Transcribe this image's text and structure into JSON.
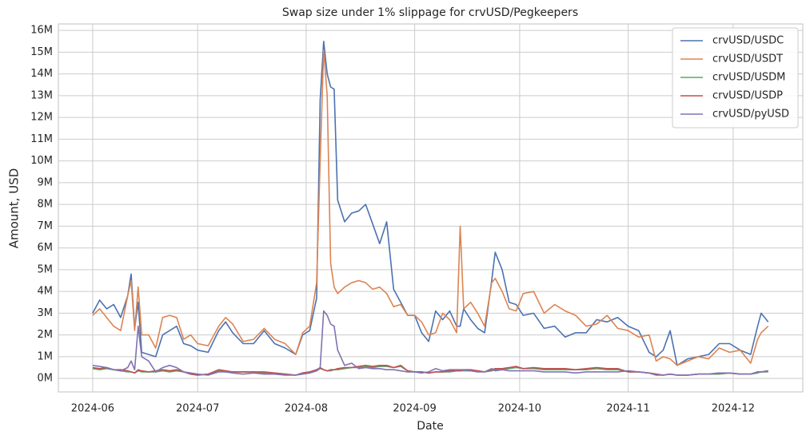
{
  "chart_data": {
    "type": "line",
    "title": "Swap size under 1% slippage for crvUSD/Pegkeepers",
    "xlabel": "Date",
    "ylabel": "Amount, USD",
    "x": [
      0,
      2,
      4,
      6,
      8,
      10,
      11,
      12,
      13,
      14,
      16,
      18,
      20,
      22,
      24,
      26,
      28,
      30,
      33,
      36,
      38,
      40,
      43,
      46,
      49,
      52,
      55,
      58,
      60,
      62,
      64,
      65,
      66,
      67,
      68,
      69,
      70,
      72,
      74,
      76,
      78,
      80,
      82,
      84,
      86,
      88,
      90,
      92,
      94,
      96,
      98,
      100,
      102,
      104,
      105,
      106,
      108,
      110,
      112,
      114,
      115,
      117,
      119,
      121,
      123,
      126,
      129,
      132,
      135,
      138,
      141,
      144,
      147,
      150,
      153,
      156,
      159,
      161,
      163,
      165,
      167,
      170,
      173,
      176,
      179,
      182,
      185,
      188,
      190,
      191,
      193
    ],
    "series": [
      {
        "name": "crvUSD/USDC",
        "color": "#4c72b0",
        "values": [
          3.0,
          3.6,
          3.2,
          3.4,
          2.8,
          3.8,
          4.8,
          2.3,
          3.5,
          1.2,
          1.1,
          1.0,
          2.0,
          2.2,
          2.4,
          1.6,
          1.5,
          1.3,
          1.2,
          2.2,
          2.6,
          2.1,
          1.6,
          1.6,
          2.2,
          1.6,
          1.4,
          1.1,
          2.0,
          2.2,
          3.7,
          12.8,
          15.5,
          14.0,
          13.4,
          13.3,
          8.2,
          7.2,
          7.6,
          7.7,
          8.0,
          7.1,
          6.2,
          7.2,
          4.1,
          3.5,
          2.9,
          2.9,
          2.1,
          1.7,
          3.1,
          2.7,
          3.1,
          2.4,
          2.4,
          3.2,
          2.7,
          2.3,
          2.1,
          4.5,
          5.8,
          5.0,
          3.5,
          3.4,
          2.9,
          3.0,
          2.3,
          2.4,
          1.9,
          2.1,
          2.1,
          2.7,
          2.6,
          2.8,
          2.4,
          2.2,
          1.2,
          1.0,
          1.3,
          2.2,
          0.6,
          0.9,
          1.0,
          1.1,
          1.6,
          1.6,
          1.3,
          1.1,
          2.4,
          3.0,
          2.6
        ]
      },
      {
        "name": "crvUSD/USDT",
        "color": "#dd8452",
        "values": [
          2.9,
          3.2,
          2.8,
          2.4,
          2.2,
          3.8,
          4.5,
          2.2,
          4.2,
          2.0,
          2.0,
          1.4,
          2.8,
          2.9,
          2.8,
          1.8,
          2.0,
          1.6,
          1.5,
          2.4,
          2.8,
          2.5,
          1.7,
          1.8,
          2.3,
          1.8,
          1.6,
          1.1,
          2.1,
          2.4,
          4.4,
          10.0,
          15.1,
          13.0,
          5.3,
          4.2,
          3.9,
          4.2,
          4.4,
          4.5,
          4.4,
          4.1,
          4.2,
          3.9,
          3.3,
          3.4,
          2.9,
          2.9,
          2.6,
          2.0,
          2.1,
          3.0,
          2.7,
          2.1,
          7.0,
          3.2,
          3.5,
          3.0,
          2.4,
          4.4,
          4.6,
          4.0,
          3.2,
          3.1,
          3.9,
          4.0,
          3.0,
          3.4,
          3.1,
          2.9,
          2.4,
          2.5,
          2.9,
          2.3,
          2.2,
          1.9,
          2.0,
          0.8,
          1.0,
          0.9,
          0.6,
          0.8,
          1.0,
          0.9,
          1.4,
          1.2,
          1.3,
          0.7,
          1.8,
          2.1,
          2.4
        ]
      },
      {
        "name": "crvUSD/USDM",
        "color": "#55a868",
        "values": [
          0.45,
          0.4,
          0.45,
          0.4,
          0.35,
          0.3,
          0.3,
          0.25,
          0.35,
          0.3,
          0.3,
          0.3,
          0.35,
          0.3,
          0.35,
          0.3,
          0.2,
          0.15,
          0.2,
          0.35,
          0.3,
          0.3,
          0.3,
          0.3,
          0.25,
          0.25,
          0.2,
          0.15,
          0.25,
          0.3,
          0.35,
          0.45,
          0.4,
          0.35,
          0.35,
          0.4,
          0.4,
          0.45,
          0.5,
          0.5,
          0.55,
          0.5,
          0.55,
          0.55,
          0.5,
          0.55,
          0.35,
          0.3,
          0.3,
          0.25,
          0.3,
          0.3,
          0.3,
          0.35,
          0.35,
          0.35,
          0.35,
          0.35,
          0.3,
          0.35,
          0.4,
          0.4,
          0.45,
          0.5,
          0.45,
          0.45,
          0.4,
          0.4,
          0.4,
          0.4,
          0.4,
          0.45,
          0.4,
          0.4,
          0.3,
          0.3,
          0.25,
          0.2,
          0.15,
          0.2,
          0.15,
          0.15,
          0.2,
          0.2,
          0.2,
          0.25,
          0.2,
          0.2,
          0.25,
          0.3,
          0.3
        ]
      },
      {
        "name": "crvUSD/USDP",
        "color": "#c44e52",
        "values": [
          0.5,
          0.45,
          0.5,
          0.4,
          0.4,
          0.35,
          0.3,
          0.25,
          0.4,
          0.35,
          0.3,
          0.35,
          0.4,
          0.35,
          0.4,
          0.3,
          0.2,
          0.15,
          0.2,
          0.4,
          0.35,
          0.3,
          0.3,
          0.3,
          0.3,
          0.25,
          0.2,
          0.15,
          0.25,
          0.3,
          0.4,
          0.5,
          0.4,
          0.35,
          0.4,
          0.4,
          0.45,
          0.5,
          0.5,
          0.55,
          0.6,
          0.55,
          0.6,
          0.6,
          0.5,
          0.6,
          0.35,
          0.3,
          0.3,
          0.25,
          0.3,
          0.3,
          0.35,
          0.35,
          0.35,
          0.4,
          0.4,
          0.35,
          0.3,
          0.4,
          0.45,
          0.45,
          0.5,
          0.55,
          0.45,
          0.5,
          0.45,
          0.45,
          0.45,
          0.4,
          0.45,
          0.5,
          0.45,
          0.45,
          0.3,
          0.3,
          0.25,
          0.2,
          0.15,
          0.2,
          0.15,
          0.15,
          0.2,
          0.2,
          0.25,
          0.25,
          0.2,
          0.2,
          0.3,
          0.3,
          0.35
        ]
      },
      {
        "name": "crvUSD/pyUSD",
        "color": "#8172b3",
        "values": [
          0.6,
          0.55,
          0.5,
          0.4,
          0.35,
          0.5,
          0.8,
          0.4,
          2.4,
          1.0,
          0.8,
          0.3,
          0.5,
          0.6,
          0.5,
          0.3,
          0.25,
          0.2,
          0.15,
          0.3,
          0.3,
          0.25,
          0.2,
          0.25,
          0.2,
          0.2,
          0.15,
          0.15,
          0.2,
          0.25,
          0.35,
          0.5,
          3.1,
          2.9,
          2.5,
          2.4,
          1.3,
          0.6,
          0.7,
          0.45,
          0.5,
          0.45,
          0.45,
          0.4,
          0.4,
          0.35,
          0.3,
          0.3,
          0.25,
          0.3,
          0.45,
          0.35,
          0.4,
          0.4,
          0.4,
          0.4,
          0.35,
          0.3,
          0.3,
          0.45,
          0.35,
          0.4,
          0.35,
          0.35,
          0.35,
          0.35,
          0.3,
          0.3,
          0.3,
          0.25,
          0.3,
          0.3,
          0.3,
          0.3,
          0.35,
          0.3,
          0.25,
          0.15,
          0.15,
          0.2,
          0.15,
          0.15,
          0.2,
          0.2,
          0.25,
          0.25,
          0.2,
          0.2,
          0.3,
          0.3,
          0.35
        ]
      }
    ],
    "xlim": [
      -9.8,
      202.9
    ],
    "xticks": [
      {
        "value": 0,
        "label": "2024-06"
      },
      {
        "value": 30,
        "label": "2024-07"
      },
      {
        "value": 61,
        "label": "2024-08"
      },
      {
        "value": 92,
        "label": "2024-09"
      },
      {
        "value": 122,
        "label": "2024-10"
      },
      {
        "value": 153,
        "label": "2024-11"
      },
      {
        "value": 183,
        "label": "2024-12"
      }
    ],
    "ylim": [
      -0.62,
      16.3
    ],
    "yticks": [
      {
        "value": 0,
        "label": "0M"
      },
      {
        "value": 1,
        "label": "1M"
      },
      {
        "value": 2,
        "label": "2M"
      },
      {
        "value": 3,
        "label": "3M"
      },
      {
        "value": 4,
        "label": "4M"
      },
      {
        "value": 5,
        "label": "5M"
      },
      {
        "value": 6,
        "label": "6M"
      },
      {
        "value": 7,
        "label": "7M"
      },
      {
        "value": 8,
        "label": "8M"
      },
      {
        "value": 9,
        "label": "9M"
      },
      {
        "value": 10,
        "label": "10M"
      },
      {
        "value": 11,
        "label": "11M"
      },
      {
        "value": 12,
        "label": "12M"
      },
      {
        "value": 13,
        "label": "13M"
      },
      {
        "value": 14,
        "label": "14M"
      },
      {
        "value": 15,
        "label": "15M"
      },
      {
        "value": 16,
        "label": "16M"
      }
    ],
    "grid": true,
    "legend": "upper right"
  }
}
